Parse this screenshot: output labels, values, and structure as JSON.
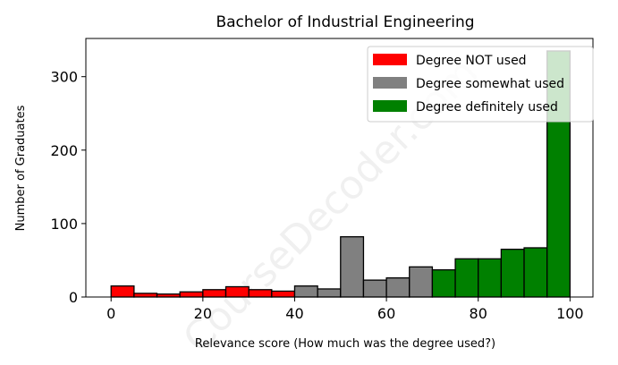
{
  "chart_data": {
    "type": "bar",
    "title": "Bachelor of Industrial Engineering",
    "xlabel": "Relevance score (How much was the degree used?)",
    "ylabel": "Number of Graduates",
    "xlim": [
      -5.5,
      105
    ],
    "ylim": [
      0,
      352
    ],
    "xticks": [
      0,
      20,
      40,
      60,
      80,
      100
    ],
    "yticks": [
      0,
      100,
      200,
      300
    ],
    "bin_width": 5,
    "bins": [
      {
        "x": 0,
        "value": 15,
        "series": "Degree NOT used"
      },
      {
        "x": 5,
        "value": 5,
        "series": "Degree NOT used"
      },
      {
        "x": 10,
        "value": 4,
        "series": "Degree NOT used"
      },
      {
        "x": 15,
        "value": 7,
        "series": "Degree NOT used"
      },
      {
        "x": 20,
        "value": 10,
        "series": "Degree NOT used"
      },
      {
        "x": 25,
        "value": 14,
        "series": "Degree NOT used"
      },
      {
        "x": 30,
        "value": 10,
        "series": "Degree NOT used"
      },
      {
        "x": 35,
        "value": 8,
        "series": "Degree NOT used"
      },
      {
        "x": 40,
        "value": 15,
        "series": "Degree somewhat used"
      },
      {
        "x": 45,
        "value": 11,
        "series": "Degree somewhat used"
      },
      {
        "x": 50,
        "value": 82,
        "series": "Degree somewhat used"
      },
      {
        "x": 55,
        "value": 23,
        "series": "Degree somewhat used"
      },
      {
        "x": 60,
        "value": 26,
        "series": "Degree somewhat used"
      },
      {
        "x": 65,
        "value": 41,
        "series": "Degree somewhat used"
      },
      {
        "x": 70,
        "value": 37,
        "series": "Degree definitely used"
      },
      {
        "x": 75,
        "value": 52,
        "series": "Degree definitely used"
      },
      {
        "x": 80,
        "value": 52,
        "series": "Degree definitely used"
      },
      {
        "x": 85,
        "value": 65,
        "series": "Degree definitely used"
      },
      {
        "x": 90,
        "value": 67,
        "series": "Degree definitely used"
      },
      {
        "x": 95,
        "value": 335,
        "series": "Degree definitely used"
      }
    ],
    "series": [
      {
        "name": "Degree NOT used",
        "color": "#ff0000"
      },
      {
        "name": "Degree somewhat used",
        "color": "#808080"
      },
      {
        "name": "Degree definitely used",
        "color": "#008000"
      }
    ],
    "legend_position": "top-right",
    "grid": false,
    "watermark": "CourseDecoder.com"
  }
}
